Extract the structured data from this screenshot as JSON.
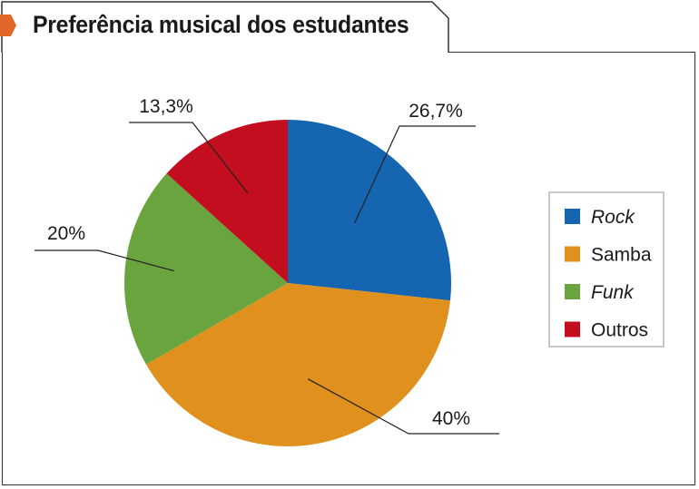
{
  "chart_data": {
    "type": "pie",
    "title": "Preferência musical dos estudantes",
    "slices": [
      {
        "label": "Rock",
        "value": 26.7,
        "value_label": "26,7%",
        "color": "#1565b0",
        "italic": true
      },
      {
        "label": "Samba",
        "value": 40,
        "value_label": "40%",
        "color": "#e0901c",
        "italic": false
      },
      {
        "label": "Funk",
        "value": 20,
        "value_label": "20%",
        "color": "#6aa43e",
        "italic": true
      },
      {
        "label": "Outros",
        "value": 13.3,
        "value_label": "13,3%",
        "color": "#c20e1e",
        "italic": false
      }
    ],
    "legend_position": "right",
    "accent_color": "#e0662a"
  }
}
